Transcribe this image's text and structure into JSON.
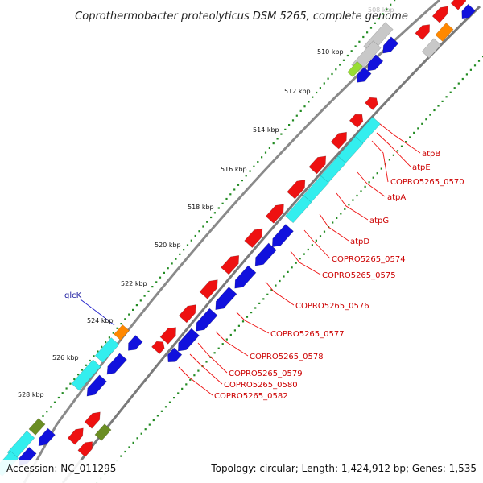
{
  "map": {
    "title": "Coprothermobacter proteolyticus DSM 5265, complete genome",
    "top_cutoff_label": "508 kbp",
    "scale_ticks": [
      "510 kbp",
      "512 kbp",
      "514 kbp",
      "516 kbp",
      "518 kbp",
      "520 kbp",
      "522 kbp",
      "524 kbp",
      "526 kbp",
      "528 kbp"
    ],
    "gene_labels_right": [
      "atpB",
      "atpE",
      "COPRO5265_0570",
      "atpA",
      "atpG",
      "atpD",
      "COPRO5265_0574",
      "COPRO5265_0575",
      "COPRO5265_0576",
      "COPRO5265_0577",
      "COPRO5265_0578",
      "COPRO5265_0579",
      "COPRO5265_0580",
      "COPRO5265_0582"
    ],
    "gene_label_left": "glcK",
    "colors": {
      "forward_cds": "#ee1111",
      "reverse_cds": "#1111dd",
      "rrna_like": "#33eeee",
      "gray_feature": "#c8c8c8",
      "orange_feature": "#ff8800",
      "olive_feature": "#6b8e23",
      "lime_feature": "#99dd33",
      "backbone": "#8a8a8a",
      "scale_dots": "#228b22",
      "leader_line_red": "#ee1111",
      "leader_line_blue": "#2222cc"
    }
  },
  "footer": {
    "accession": "Accession: NC_011295",
    "summary": "Topology: circular; Length: 1,424,912 bp; Genes: 1,535"
  }
}
